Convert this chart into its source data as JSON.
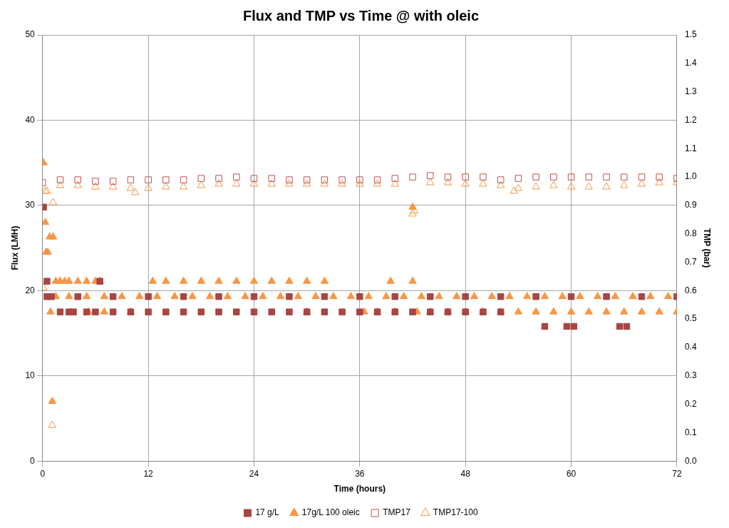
{
  "chart_data": {
    "type": "scatter",
    "title": "Flux and TMP vs Time @ with oleic",
    "xlabel": "Time (hours)",
    "ylabel": "Flux (LMH)",
    "y2label": "TMP (bar)",
    "xlim": [
      0,
      72
    ],
    "xticks": [
      0,
      12,
      24,
      36,
      48,
      60,
      72
    ],
    "ylim": [
      0,
      50
    ],
    "yticks": [
      0,
      10,
      20,
      30,
      40,
      50
    ],
    "y2lim": [
      0,
      1.5
    ],
    "y2ticks": [
      {
        "value": 0,
        "label": "0.0"
      },
      0.1,
      0.2,
      0.3,
      0.4,
      0.5,
      0.6,
      0.7,
      0.8,
      0.9,
      {
        "value": 1,
        "label": "1.0"
      },
      1.1,
      1.2,
      1.3,
      1.4,
      1.5
    ],
    "grid": true,
    "legend": "bottom",
    "series": [
      {
        "name": "17 g/L",
        "color": "#a84543",
        "marker": "square",
        "x": [
          0.1,
          0.5,
          6.5,
          0.5,
          1,
          4,
          8,
          12,
          16,
          20,
          24,
          28,
          32,
          36,
          40,
          44,
          48,
          52,
          56,
          60,
          64,
          68,
          72,
          2,
          3,
          3.5,
          5,
          6,
          8,
          10,
          12,
          14,
          16,
          18,
          20,
          22,
          24,
          26,
          28,
          30,
          32,
          34,
          36,
          38,
          40,
          42,
          44,
          46,
          48,
          50,
          52,
          57,
          59.5,
          60.3,
          65.5,
          66.3
        ],
        "values": [
          29.8,
          21.1,
          21.1,
          19.3,
          19.3,
          19.3,
          19.3,
          19.3,
          19.3,
          19.3,
          19.3,
          19.3,
          19.3,
          19.3,
          19.3,
          19.3,
          19.3,
          19.3,
          19.3,
          19.3,
          19.3,
          19.3,
          19.3,
          17.5,
          17.5,
          17.5,
          17.5,
          17.5,
          17.5,
          17.5,
          17.5,
          17.5,
          17.5,
          17.5,
          17.5,
          17.5,
          17.5,
          17.5,
          17.5,
          17.5,
          17.5,
          17.5,
          17.5,
          17.5,
          17.5,
          17.5,
          17.5,
          17.5,
          17.5,
          17.5,
          17.5,
          15.8,
          15.8,
          15.8,
          15.8,
          15.8
        ]
      },
      {
        "name": "17g/L 100 oleic",
        "color": "#f79646",
        "marker": "triangle",
        "x": [
          0.1,
          0.3,
          0.4,
          0.6,
          0.8,
          1.2,
          0.9,
          1.1,
          42,
          1.5,
          2,
          2.5,
          3,
          4,
          5,
          6,
          6.5,
          12.5,
          14,
          16,
          18,
          20,
          22,
          24,
          26,
          28,
          30,
          32,
          39.5,
          42,
          1.5,
          3,
          5,
          7,
          9,
          11,
          13,
          15,
          17,
          19,
          21,
          23,
          25,
          27,
          29,
          31,
          33,
          35,
          37,
          39,
          41,
          43,
          45,
          47,
          49,
          51,
          53,
          55,
          57,
          59,
          61,
          63,
          65,
          67,
          69,
          71,
          72,
          5.2,
          7,
          10,
          30,
          36.5,
          38,
          40,
          42.5,
          44,
          46,
          48,
          50,
          52,
          54,
          56,
          58,
          60,
          62,
          64,
          66,
          68,
          70,
          72
        ],
        "values": [
          35,
          28,
          24.5,
          24.5,
          26.3,
          26.3,
          17.5,
          7,
          29.8,
          21.1,
          21.1,
          21.1,
          21.1,
          21.1,
          21.1,
          21.1,
          21.1,
          21.1,
          21.1,
          21.1,
          21.1,
          21.1,
          21.1,
          21.1,
          21.1,
          21.1,
          21.1,
          21.1,
          21.1,
          21.1,
          19.3,
          19.3,
          19.3,
          19.3,
          19.3,
          19.3,
          19.3,
          19.3,
          19.3,
          19.3,
          19.3,
          19.3,
          19.3,
          19.3,
          19.3,
          19.3,
          19.3,
          19.3,
          19.3,
          19.3,
          19.3,
          19.3,
          19.3,
          19.3,
          19.3,
          19.3,
          19.3,
          19.3,
          19.3,
          19.3,
          19.3,
          19.3,
          19.3,
          19.3,
          19.3,
          19.3,
          19.3,
          17.5,
          17.5,
          17.5,
          17.5,
          17.5,
          17.5,
          17.5,
          17.5,
          17.5,
          17.5,
          17.5,
          17.5,
          17.5,
          17.5,
          17.5,
          17.5,
          17.5,
          17.5,
          17.5,
          17.5,
          17.5,
          17.5,
          17.5
        ]
      },
      {
        "name": "TMP17",
        "color": "#c0504d",
        "marker": "square",
        "axis": "y2",
        "x": [
          0,
          2,
          4,
          6,
          8,
          10,
          12,
          14,
          16,
          18,
          20,
          22,
          24,
          26,
          28,
          30,
          32,
          34,
          36,
          38,
          40,
          42,
          44,
          46,
          48,
          50,
          52,
          54,
          56,
          58,
          60,
          62,
          64,
          66,
          68,
          70,
          72
        ],
        "values": [
          0.98,
          0.99,
          0.99,
          0.985,
          0.985,
          0.99,
          0.99,
          0.99,
          0.99,
          0.995,
          0.995,
          1.0,
          0.995,
          0.995,
          0.99,
          0.99,
          0.99,
          0.99,
          0.99,
          0.99,
          0.995,
          1.0,
          1.005,
          1.0,
          1.0,
          1.0,
          0.99,
          0.995,
          1.0,
          1.0,
          1.0,
          1.0,
          1.0,
          1.0,
          1.0,
          1.0,
          0.995
        ]
      },
      {
        "name": "TMP17-100",
        "color": "#f79646",
        "marker": "triangle",
        "axis": "y2",
        "x": [
          0.1,
          0.3,
          0.5,
          1.1,
          1.2,
          2,
          4,
          6,
          8,
          10,
          10.5,
          12,
          14,
          16,
          18,
          20,
          22,
          24,
          26,
          28,
          30,
          32,
          34,
          36,
          38,
          40,
          42,
          42.2,
          44,
          46,
          48,
          50,
          52,
          53.5,
          54,
          56,
          58,
          60,
          62,
          64,
          66,
          68,
          70,
          72
        ],
        "values": [
          0.61,
          0.95,
          0.95,
          0.126,
          0.91,
          0.97,
          0.97,
          0.965,
          0.965,
          0.96,
          0.945,
          0.96,
          0.965,
          0.965,
          0.97,
          0.975,
          0.975,
          0.975,
          0.975,
          0.975,
          0.975,
          0.975,
          0.975,
          0.975,
          0.975,
          0.975,
          0.87,
          0.88,
          0.98,
          0.98,
          0.975,
          0.975,
          0.97,
          0.95,
          0.96,
          0.965,
          0.97,
          0.965,
          0.965,
          0.965,
          0.97,
          0.975,
          0.98,
          0.98
        ]
      }
    ]
  }
}
